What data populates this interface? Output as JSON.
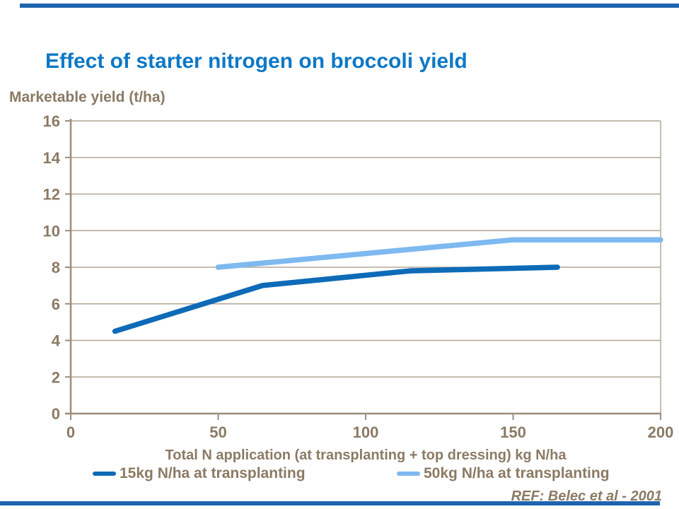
{
  "slide": {
    "title": "Effect of starter nitrogen on broccoli yield",
    "reference": "REF: Belec et al - 2001"
  },
  "colors": {
    "accent_bar": "#1E64AE",
    "title_blue": "#0D78C6",
    "text_brown": "#8B7A64",
    "gridline": "#B3A696",
    "axis": "#9C8C7A",
    "series1_dark_blue": "#0E6BB8",
    "series2_light_blue": "#7EB9F0"
  },
  "chart_data": {
    "type": "line",
    "title": "Effect of starter nitrogen on broccoli yield",
    "xlabel": "Total N application (at transplanting + top dressing) kg N/ha",
    "ylabel": "Marketable yield (t/ha)",
    "xlim": [
      0,
      200
    ],
    "ylim": [
      0,
      16
    ],
    "x_ticks": [
      0,
      50,
      100,
      150,
      200
    ],
    "y_ticks": [
      0,
      2,
      4,
      6,
      8,
      10,
      12,
      14,
      16
    ],
    "grid": "horizontal",
    "legend_position": "bottom",
    "series": [
      {
        "name": "15kg N/ha at transplanting",
        "color": "#0E6BB8",
        "points": [
          [
            15,
            4.5
          ],
          [
            65,
            7.0
          ],
          [
            115,
            7.8
          ],
          [
            165,
            8.0
          ]
        ]
      },
      {
        "name": "50kg N/ha at transplanting",
        "color": "#7EB9F0",
        "points": [
          [
            50,
            8.0
          ],
          [
            150,
            9.5
          ],
          [
            200,
            9.5
          ]
        ]
      }
    ],
    "reference": "REF: Belec et al - 2001"
  }
}
